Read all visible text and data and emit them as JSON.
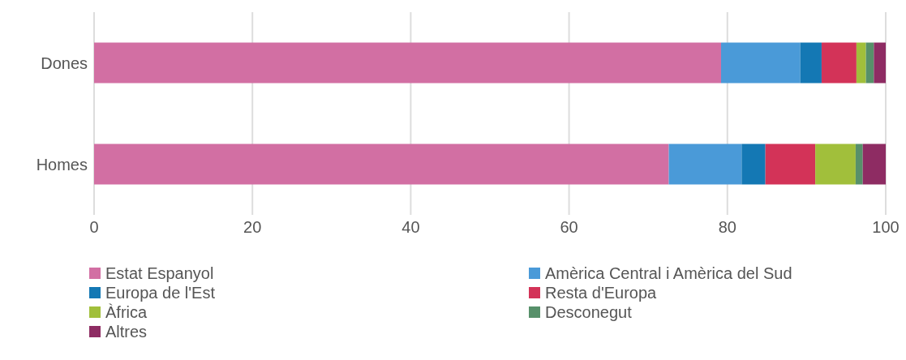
{
  "chart_data": {
    "type": "bar",
    "orientation": "horizontal",
    "stacked": true,
    "categories": [
      "Dones",
      "Homes"
    ],
    "series": [
      {
        "name": "Estat Espanyol",
        "color": "#d26fa3",
        "values": [
          79.2,
          72.6
        ]
      },
      {
        "name": "Amèrica Central i Amèrica del Sud",
        "color": "#4a9ad8",
        "values": [
          10.0,
          9.2
        ]
      },
      {
        "name": "Europa de l'Est",
        "color": "#1478b4",
        "values": [
          2.7,
          3.0
        ]
      },
      {
        "name": "Resta d'Europa",
        "color": "#d33358",
        "values": [
          4.4,
          6.3
        ]
      },
      {
        "name": "Àfrica",
        "color": "#a1bf3b",
        "values": [
          1.2,
          5.1
        ]
      },
      {
        "name": "Desconegut",
        "color": "#57906a",
        "values": [
          1.0,
          0.9
        ]
      },
      {
        "name": "Altres",
        "color": "#8e2c63",
        "values": [
          1.5,
          2.9
        ]
      }
    ],
    "xlim": [
      0,
      100
    ],
    "xticks": [
      0,
      20,
      40,
      60,
      80,
      100
    ],
    "grid": "x",
    "legend": "bottom"
  }
}
